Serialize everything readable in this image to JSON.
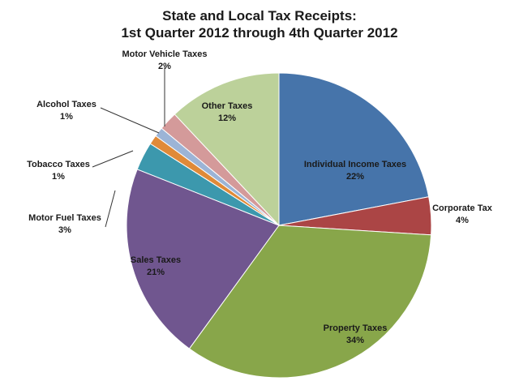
{
  "chart_data": {
    "type": "pie",
    "title_line1": "State and Local Tax Receipts:",
    "title_line2": "1st Quarter 2012 through 4th Quarter 2012",
    "slices": [
      {
        "name": "Individual Income Taxes",
        "pct_label": "22%",
        "value": 22,
        "color": "#4674aa"
      },
      {
        "name": "Corporate Tax",
        "pct_label": "4%",
        "value": 4,
        "color": "#ab4545"
      },
      {
        "name": "Property Taxes",
        "pct_label": "34%",
        "value": 34,
        "color": "#88a64a"
      },
      {
        "name": "Sales Taxes",
        "pct_label": "21%",
        "value": 21,
        "color": "#70568f"
      },
      {
        "name": "Motor Fuel Taxes",
        "pct_label": "3%",
        "value": 3,
        "color": "#3c98ad"
      },
      {
        "name": "Tobacco Taxes",
        "pct_label": "1%",
        "value": 1,
        "color": "#e08a38"
      },
      {
        "name": "Alcohol Taxes",
        "pct_label": "1%",
        "value": 1,
        "color": "#9cb4d6"
      },
      {
        "name": "Motor Vehicle Taxes",
        "pct_label": "2%",
        "value": 2,
        "color": "#d49a9a"
      },
      {
        "name": "Other Taxes",
        "pct_label": "12%",
        "value": 12,
        "color": "#bcd19a"
      }
    ]
  }
}
